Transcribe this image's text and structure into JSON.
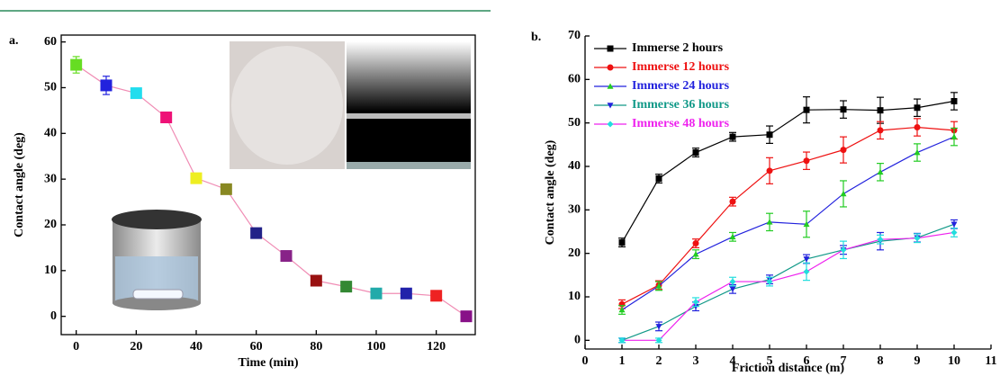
{
  "chart_data": [
    {
      "type": "line",
      "panel_label": "a.",
      "xlabel": "Time (min)",
      "ylabel": "Contact angle (deg)",
      "xlim": [
        -5,
        133
      ],
      "xticks": [
        0,
        20,
        40,
        60,
        80,
        100,
        120
      ],
      "ylim": [
        -4,
        61.5
      ],
      "yticks": [
        0,
        10,
        20,
        30,
        40,
        50,
        60
      ],
      "series": [
        {
          "color": "#f08cb4",
          "marker": "square",
          "x": [
            0,
            10,
            20,
            30,
            40,
            50,
            60,
            70,
            80,
            90,
            100,
            110,
            120,
            130
          ],
          "values": [
            55,
            50.5,
            48.8,
            43.5,
            30.2,
            27.8,
            18.2,
            13.2,
            7.8,
            6.5,
            5,
            5,
            4.5,
            0
          ],
          "errors": [
            1.8,
            2,
            0.6,
            0.5,
            0.5,
            0.5,
            0.5,
            0.5,
            0.5,
            0.5,
            0.5,
            0.5,
            0.5,
            0.5
          ],
          "marker_colors": [
            "#66dd22",
            "#2222dd",
            "#22ddee",
            "#ee1177",
            "#eeee22",
            "#888822",
            "#222288",
            "#882288",
            "#991111",
            "#338833",
            "#22aaaa",
            "#2222aa",
            "#ee2222",
            "#881188"
          ]
        }
      ]
    },
    {
      "type": "line",
      "panel_label": "b.",
      "xlabel": "Friction distance (m)",
      "ylabel": "Contact angle (deg)",
      "xlim": [
        0,
        11
      ],
      "xticks": [
        0,
        1,
        2,
        3,
        4,
        5,
        6,
        7,
        8,
        9,
        10,
        11
      ],
      "ylim": [
        -2,
        70
      ],
      "yticks": [
        0,
        10,
        20,
        30,
        40,
        50,
        60,
        70
      ],
      "legend": "upper left",
      "series": [
        {
          "name": "Immerse 2 hours",
          "color": "#000000",
          "marker_color": "#000000",
          "marker": "square",
          "x": [
            1,
            2,
            3,
            4,
            5,
            6,
            7,
            8,
            9,
            10
          ],
          "values": [
            22.5,
            37.2,
            43.2,
            46.8,
            47.3,
            53,
            53.1,
            52.9,
            53.5,
            55
          ],
          "errors": [
            1,
            1,
            1,
            1,
            2,
            3,
            2,
            3,
            2,
            2
          ]
        },
        {
          "name": "Immerse 12 hours",
          "color": "#ee1111",
          "marker_color": "#ee1111",
          "marker": "circle",
          "x": [
            1,
            2,
            3,
            4,
            5,
            6,
            7,
            8,
            9,
            10
          ],
          "values": [
            8.3,
            12.7,
            22.3,
            31.9,
            39,
            41.3,
            43.8,
            48.3,
            49,
            48.3
          ],
          "errors": [
            1,
            1,
            1,
            1,
            3,
            2,
            3,
            2,
            2,
            2
          ]
        },
        {
          "name": "Immerse 24 hours",
          "color": "#2222dd",
          "marker_color": "#22cc22",
          "marker": "triangle-up",
          "x": [
            1,
            2,
            3,
            4,
            5,
            6,
            7,
            8,
            9,
            10
          ],
          "values": [
            7,
            12.5,
            19.8,
            23.8,
            27.2,
            26.7,
            33.7,
            38.7,
            43.2,
            46.8
          ],
          "errors": [
            1,
            1,
            1,
            1,
            2,
            3,
            3,
            2,
            2,
            2
          ]
        },
        {
          "name": "Immerse 36 hours",
          "color": "#119988",
          "marker_color": "#2222dd",
          "marker": "triangle-down",
          "x": [
            1,
            2,
            3,
            4,
            5,
            6,
            7,
            8,
            9,
            10
          ],
          "values": [
            0,
            3.2,
            7.8,
            11.8,
            14,
            18.7,
            20.8,
            22.8,
            23.6,
            26.7
          ],
          "errors": [
            0.5,
            1,
            1,
            1,
            1,
            1,
            1,
            2,
            1,
            1
          ]
        },
        {
          "name": "Immerse 48 hours",
          "color": "#ee22ee",
          "marker_color": "#22dddd",
          "marker": "diamond",
          "x": [
            1,
            2,
            3,
            4,
            5,
            6,
            7,
            8,
            9,
            10
          ],
          "values": [
            0,
            0,
            8.8,
            13.5,
            13.5,
            15.8,
            20.8,
            23.2,
            23.5,
            24.8
          ],
          "errors": [
            0.5,
            0.5,
            1,
            1,
            1,
            2,
            2,
            1,
            1,
            1
          ]
        }
      ]
    }
  ]
}
